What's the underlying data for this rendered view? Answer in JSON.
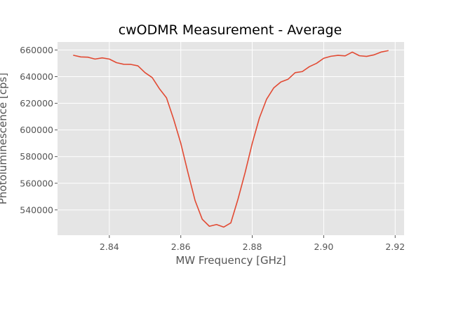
{
  "chart_data": {
    "type": "line",
    "title": "cwODMR Measurement - Average",
    "xlabel": "MW Frequency [GHz]",
    "ylabel": "Photoluminescence [cps]",
    "xlim": [
      2.8255,
      2.9225
    ],
    "ylim": [
      521000,
      666000
    ],
    "xticks": [
      2.84,
      2.86,
      2.88,
      2.9,
      2.92
    ],
    "xtick_labels": [
      "2.84",
      "2.86",
      "2.88",
      "2.90",
      "2.92"
    ],
    "yticks": [
      540000,
      560000,
      580000,
      600000,
      620000,
      640000,
      660000
    ],
    "ytick_labels": [
      "540000",
      "560000",
      "580000",
      "600000",
      "620000",
      "640000",
      "660000"
    ],
    "grid": true,
    "series": [
      {
        "color": "#E24A33",
        "x": [
          2.83,
          2.832,
          2.834,
          2.836,
          2.838,
          2.84,
          2.842,
          2.844,
          2.846,
          2.848,
          2.85,
          2.852,
          2.854,
          2.856,
          2.858,
          2.86,
          2.862,
          2.864,
          2.866,
          2.868,
          2.87,
          2.872,
          2.874,
          2.876,
          2.878,
          2.88,
          2.882,
          2.884,
          2.886,
          2.888,
          2.89,
          2.892,
          2.894,
          2.896,
          2.898,
          2.9,
          2.902,
          2.904,
          2.906,
          2.908,
          2.91,
          2.912,
          2.914,
          2.916,
          2.918
        ],
        "y": [
          656000,
          654800,
          654600,
          653200,
          654100,
          653200,
          650500,
          649300,
          649200,
          648100,
          643000,
          639300,
          631000,
          624100,
          608000,
          590000,
          568000,
          547000,
          533000,
          527700,
          529000,
          527100,
          530200,
          548000,
          568000,
          590000,
          609000,
          623000,
          631500,
          636000,
          638000,
          643000,
          643800,
          647500,
          650000,
          653800,
          655300,
          656000,
          655600,
          658400,
          655700,
          655200,
          656300,
          658400,
          659500
        ]
      }
    ]
  }
}
